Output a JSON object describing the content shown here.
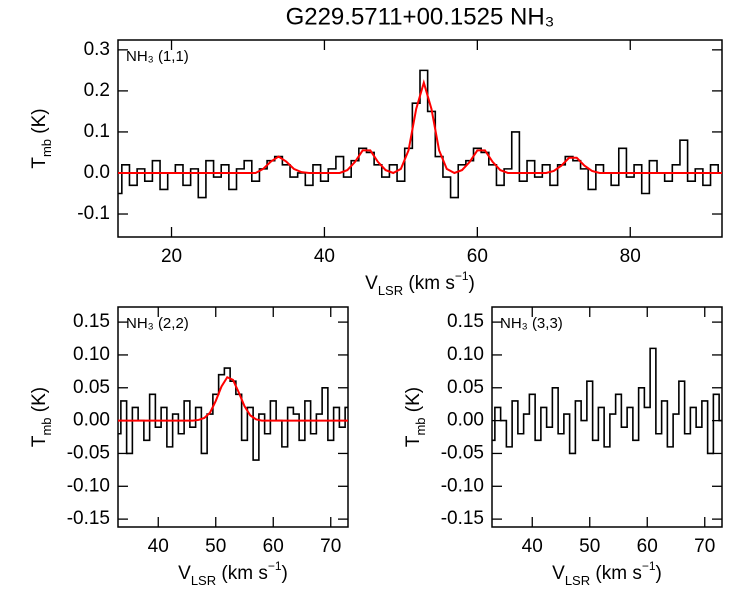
{
  "title": "G229.5711+00.1525 NH₃",
  "chart_data": [
    {
      "type": "line",
      "label": "NH₃ (1,1)",
      "xlabel": [
        "V",
        "LSR",
        " (km s",
        "−1",
        ")"
      ],
      "ylabel": [
        "T",
        "mb",
        " (K)"
      ],
      "x": [
        13,
        14,
        15,
        16,
        17,
        18,
        19,
        20,
        21,
        22,
        23,
        24,
        25,
        26,
        27,
        28,
        29,
        30,
        31,
        32,
        33,
        34,
        35,
        36,
        37,
        38,
        39,
        40,
        41,
        42,
        43,
        44,
        45,
        46,
        47,
        48,
        49,
        50,
        51,
        52,
        53,
        54,
        55,
        56,
        57,
        58,
        59,
        60,
        61,
        62,
        63,
        64,
        65,
        66,
        67,
        68,
        69,
        70,
        71,
        72,
        73,
        74,
        75,
        76,
        77,
        78,
        79,
        80,
        81,
        82,
        83,
        84,
        85,
        86,
        87,
        88,
        89,
        90,
        91,
        92
      ],
      "series": [
        {
          "color": "#000000",
          "step": true,
          "values": [
            -0.05,
            0.02,
            -0.03,
            0.01,
            -0.02,
            0.03,
            -0.04,
            0.0,
            0.02,
            -0.03,
            0.01,
            -0.06,
            0.03,
            -0.01,
            0.02,
            -0.04,
            0.01,
            0.03,
            -0.02,
            0.01,
            0.03,
            0.04,
            0.02,
            -0.01,
            0.0,
            -0.03,
            0.02,
            -0.02,
            0.01,
            0.04,
            -0.01,
            0.03,
            0.06,
            0.05,
            0.02,
            -0.01,
            0.02,
            -0.02,
            0.06,
            0.17,
            0.25,
            0.15,
            0.04,
            -0.01,
            -0.06,
            0.02,
            0.03,
            0.06,
            0.05,
            0.02,
            -0.03,
            0.01,
            0.1,
            -0.02,
            0.03,
            -0.01,
            0.02,
            -0.03,
            0.02,
            0.04,
            0.03,
            0.01,
            -0.04,
            0.02,
            0.0,
            -0.03,
            0.06,
            -0.01,
            0.02,
            -0.05,
            0.03,
            0.0,
            -0.02,
            0.02,
            0.08,
            -0.02,
            0.01,
            -0.03,
            0.02,
            0.0
          ]
        },
        {
          "color": "#ff0000",
          "step": false,
          "values": [
            0,
            0,
            0,
            0,
            0,
            0,
            0,
            0,
            0,
            0,
            0,
            0,
            0,
            0,
            0,
            0,
            0,
            0,
            0,
            0.01,
            0.028,
            0.04,
            0.028,
            0.01,
            0.002,
            0,
            0,
            0,
            0,
            0,
            0.007,
            0.027,
            0.055,
            0.055,
            0.027,
            0.007,
            0,
            0.01,
            0.055,
            0.156,
            0.22,
            0.156,
            0.055,
            0.01,
            0,
            0.007,
            0.027,
            0.055,
            0.055,
            0.027,
            0.007,
            0,
            0,
            0,
            0,
            0,
            0,
            0.005,
            0.018,
            0.037,
            0.037,
            0.018,
            0.005,
            0,
            0,
            0,
            0,
            0,
            0,
            0,
            0,
            0,
            0,
            0,
            0,
            0,
            0,
            0,
            0,
            0
          ]
        }
      ],
      "xlim": [
        13,
        92
      ],
      "xticks": [
        20,
        40,
        60,
        80
      ],
      "ylim": [
        -0.156,
        0.324
      ],
      "yticks": [
        -0.1,
        {
          "value": 0,
          "label": "0.0"
        },
        0.1,
        0.2,
        0.3
      ]
    },
    {
      "type": "line",
      "label": "NH₃ (2,2)",
      "xlabel": [
        "V",
        "LSR",
        " (km s",
        "−1",
        ")"
      ],
      "ylabel": [
        "T",
        "mb",
        " (K)"
      ],
      "x": [
        33,
        34,
        35,
        36,
        37,
        38,
        39,
        40,
        41,
        42,
        43,
        44,
        45,
        46,
        47,
        48,
        49,
        50,
        51,
        52,
        53,
        54,
        55,
        56,
        57,
        58,
        59,
        60,
        61,
        62,
        63,
        64,
        65,
        66,
        67,
        68,
        69,
        70,
        71,
        72,
        73
      ],
      "series": [
        {
          "color": "#000000",
          "step": true,
          "values": [
            -0.02,
            0.03,
            -0.05,
            0.02,
            0.0,
            -0.03,
            0.04,
            -0.01,
            0.02,
            -0.04,
            0.01,
            -0.02,
            0.03,
            -0.01,
            0.02,
            -0.05,
            0.01,
            0.04,
            0.07,
            0.08,
            0.06,
            0.04,
            -0.03,
            0.02,
            -0.06,
            0.01,
            -0.02,
            0.03,
            0.0,
            -0.04,
            0.02,
            0.01,
            -0.03,
            0.03,
            -0.02,
            0.01,
            0.05,
            -0.03,
            0.02,
            -0.01,
            0.02
          ]
        },
        {
          "color": "#ff0000",
          "step": false,
          "values": [
            0,
            0,
            0,
            0,
            0,
            0,
            0,
            0,
            0,
            0,
            0,
            0,
            0,
            0,
            0.001,
            0.004,
            0.012,
            0.03,
            0.052,
            0.066,
            0.062,
            0.043,
            0.022,
            0.008,
            0.002,
            0,
            0,
            0,
            0,
            0,
            0,
            0,
            0,
            0,
            0,
            0,
            0,
            0,
            0,
            0,
            0
          ]
        }
      ],
      "xlim": [
        33,
        73
      ],
      "xticks": [
        40,
        50,
        60,
        70
      ],
      "ylim": [
        -0.162,
        0.173
      ],
      "yticks": [
        {
          "value": -0.15,
          "label": "-0.15"
        },
        {
          "value": -0.1,
          "label": "-0.10"
        },
        -0.05,
        {
          "value": 0,
          "label": "0.00"
        },
        0.05,
        {
          "value": 0.1,
          "label": "0.10"
        },
        0.15
      ]
    },
    {
      "type": "line",
      "label": "NH₃ (3,3)",
      "xlabel": [
        "V",
        "LSR",
        " (km s",
        "−1",
        ")"
      ],
      "ylabel": [
        "T",
        "mb",
        " (K)"
      ],
      "x": [
        33,
        34,
        35,
        36,
        37,
        38,
        39,
        40,
        41,
        42,
        43,
        44,
        45,
        46,
        47,
        48,
        49,
        50,
        51,
        52,
        53,
        54,
        55,
        56,
        57,
        58,
        59,
        60,
        61,
        62,
        63,
        64,
        65,
        66,
        67,
        68,
        69,
        70,
        71,
        72,
        73
      ],
      "series": [
        {
          "color": "#000000",
          "step": true,
          "values": [
            -0.03,
            0.02,
            0.0,
            -0.04,
            0.03,
            -0.02,
            0.01,
            0.04,
            -0.03,
            0.02,
            -0.01,
            0.05,
            -0.02,
            0.01,
            -0.05,
            0.03,
            0.0,
            0.06,
            -0.03,
            0.02,
            -0.04,
            0.01,
            0.04,
            -0.01,
            0.02,
            -0.03,
            0.05,
            0.02,
            0.11,
            -0.02,
            0.03,
            -0.04,
            0.01,
            0.06,
            -0.02,
            0.02,
            -0.01,
            0.03,
            -0.05,
            0.04,
            0.0
          ]
        }
      ],
      "xlim": [
        33,
        73
      ],
      "xticks": [
        40,
        50,
        60,
        70
      ],
      "ylim": [
        -0.162,
        0.173
      ],
      "yticks": [
        {
          "value": -0.15,
          "label": "-0.15"
        },
        {
          "value": -0.1,
          "label": "-0.10"
        },
        -0.05,
        {
          "value": 0,
          "label": "0.00"
        },
        0.05,
        {
          "value": 0.1,
          "label": "0.10"
        },
        0.15
      ]
    }
  ]
}
